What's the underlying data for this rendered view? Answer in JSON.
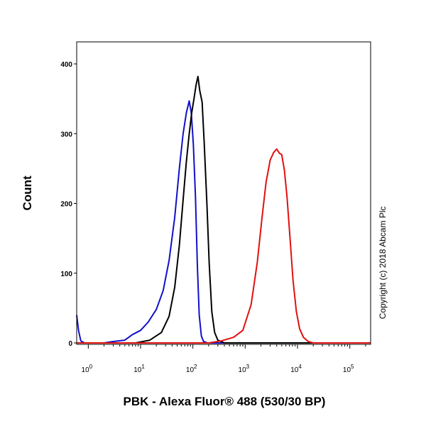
{
  "chart_data": {
    "type": "line",
    "xlabel": "PBK - Alexa Fluor® 488 (530/30 BP)",
    "ylabel": "Count",
    "x_scale": "log",
    "xlim": [
      0.6,
      250000
    ],
    "ylim": [
      0,
      430
    ],
    "y_ticks": [
      {
        "value": 0,
        "label": "0"
      },
      {
        "value": 100,
        "label": "100"
      },
      {
        "value": 200,
        "label": "200"
      },
      {
        "value": 300,
        "label": "300"
      },
      {
        "value": 400,
        "label": "400"
      }
    ],
    "x_ticks": [
      {
        "exp": 0,
        "base": "10",
        "sup": "0"
      },
      {
        "exp": 1,
        "base": "10",
        "sup": "1"
      },
      {
        "exp": 2,
        "base": "10",
        "sup": "2"
      },
      {
        "exp": 3,
        "base": "10",
        "sup": "3"
      },
      {
        "exp": 4,
        "base": "10",
        "sup": "4"
      },
      {
        "exp": 5,
        "base": "10",
        "sup": "5"
      }
    ],
    "annotation": "Copyright (c) 2018 Abcam Plc",
    "series": [
      {
        "color": "#1010c8",
        "points": [
          [
            0.6,
            40
          ],
          [
            0.65,
            18
          ],
          [
            0.72,
            3
          ],
          [
            0.85,
            0
          ],
          [
            2,
            0
          ],
          [
            3,
            2
          ],
          [
            5,
            4
          ],
          [
            7,
            12
          ],
          [
            10,
            18
          ],
          [
            14,
            30
          ],
          [
            20,
            48
          ],
          [
            27,
            75
          ],
          [
            35,
            118
          ],
          [
            45,
            180
          ],
          [
            55,
            250
          ],
          [
            65,
            300
          ],
          [
            75,
            330
          ],
          [
            85,
            347
          ],
          [
            93,
            330
          ],
          [
            102,
            285
          ],
          [
            112,
            210
          ],
          [
            122,
            110
          ],
          [
            132,
            40
          ],
          [
            145,
            10
          ],
          [
            160,
            2
          ],
          [
            190,
            0
          ],
          [
            400,
            0
          ],
          [
            250000,
            0
          ]
        ]
      },
      {
        "color": "#000000",
        "points": [
          [
            0.6,
            0
          ],
          [
            8,
            0
          ],
          [
            15,
            4
          ],
          [
            25,
            15
          ],
          [
            35,
            38
          ],
          [
            45,
            80
          ],
          [
            55,
            140
          ],
          [
            65,
            205
          ],
          [
            75,
            260
          ],
          [
            85,
            300
          ],
          [
            95,
            330
          ],
          [
            105,
            350
          ],
          [
            115,
            370
          ],
          [
            125,
            382
          ],
          [
            135,
            362
          ],
          [
            150,
            345
          ],
          [
            165,
            285
          ],
          [
            185,
            200
          ],
          [
            205,
            115
          ],
          [
            230,
            45
          ],
          [
            260,
            15
          ],
          [
            300,
            4
          ],
          [
            400,
            0
          ],
          [
            250000,
            0
          ]
        ]
      },
      {
        "color": "#e01010",
        "points": [
          [
            0.6,
            0
          ],
          [
            200,
            0
          ],
          [
            350,
            3
          ],
          [
            600,
            8
          ],
          [
            900,
            18
          ],
          [
            1300,
            55
          ],
          [
            1700,
            115
          ],
          [
            2100,
            180
          ],
          [
            2500,
            230
          ],
          [
            3000,
            262
          ],
          [
            3500,
            273
          ],
          [
            4000,
            278
          ],
          [
            4500,
            272
          ],
          [
            5000,
            270
          ],
          [
            5600,
            248
          ],
          [
            6300,
            210
          ],
          [
            7200,
            150
          ],
          [
            8200,
            90
          ],
          [
            9500,
            45
          ],
          [
            11000,
            20
          ],
          [
            13000,
            8
          ],
          [
            16000,
            2
          ],
          [
            20000,
            0
          ],
          [
            250000,
            0
          ]
        ]
      }
    ]
  }
}
